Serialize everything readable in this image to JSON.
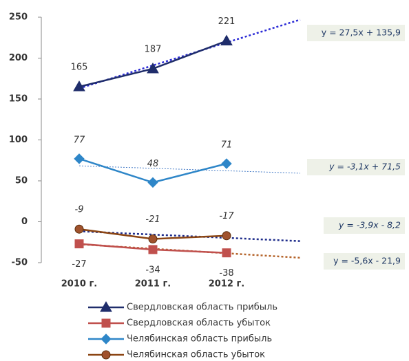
{
  "chart_data": {
    "type": "line",
    "categories": [
      "2010 г.",
      "2011 г.",
      "2012 г."
    ],
    "ylim": [
      -50,
      250
    ],
    "yticks": [
      -50,
      0,
      50,
      100,
      150,
      200,
      250
    ],
    "series": [
      {
        "name": "Свердловская область прибыль",
        "color": "#1f2d6b",
        "marker": "triangle",
        "values": [
          165,
          187,
          221
        ],
        "trendline": "y = 27,5x + 135,9",
        "trend_color": "#2b2bd6"
      },
      {
        "name": "Свердловская область убыток",
        "color": "#c0504d",
        "marker": "square",
        "values": [
          -27,
          -34,
          -38
        ],
        "trendline": "y = -5,6x - 21,9",
        "trend_color": "#b5652c"
      },
      {
        "name": "Челябинская область прибыль",
        "color": "#2e86c8",
        "marker": "diamond",
        "values": [
          77,
          48,
          71
        ],
        "trendline": "y = -3,1x + 71,5",
        "trend_color": "#4a7fc8"
      },
      {
        "name": "Челябинская область убыток",
        "color": "#8b4513",
        "marker": "circle",
        "values": [
          -9,
          -21,
          -17
        ],
        "trendline": "y = -3,9x - 8,2",
        "trend_color": "#1f2d8b"
      }
    ]
  }
}
